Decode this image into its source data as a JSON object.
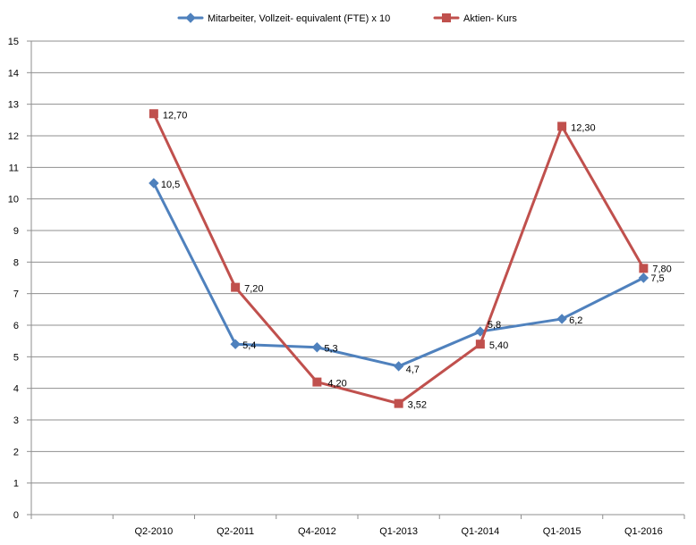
{
  "chart_data": {
    "type": "line",
    "categories": [
      "",
      "Q2-2010",
      "Q2-2011",
      "Q4-2012",
      "Q1-2013",
      "Q1-2014",
      "Q1-2015",
      "Q1-2016"
    ],
    "ylim": [
      0,
      15
    ],
    "y_ticks": [
      0,
      1,
      2,
      3,
      4,
      5,
      6,
      7,
      8,
      9,
      10,
      11,
      12,
      13,
      14,
      15
    ],
    "y_tick_labels": [
      "0",
      "1",
      "2",
      "3",
      "4",
      "5",
      "6",
      "7",
      "8",
      "9",
      "10",
      "11",
      "12",
      "13",
      "14",
      "15"
    ],
    "grid": true,
    "legend_position": "top",
    "series": [
      {
        "name": "Mitarbeiter,  Vollzeit- equivalent (FTE) x 10",
        "color": "#4F81BD",
        "marker": "diamond",
        "values": [
          null,
          10.5,
          5.4,
          5.3,
          4.7,
          5.8,
          6.2,
          7.5
        ],
        "labels": [
          "",
          "10,5",
          "5,4",
          "5,3",
          "4,7",
          "5,8",
          "6,2",
          "7,5"
        ]
      },
      {
        "name": "Aktien- Kurs",
        "color": "#C0504D",
        "marker": "square",
        "values": [
          null,
          12.7,
          7.2,
          4.2,
          3.52,
          5.4,
          12.3,
          7.8
        ],
        "labels": [
          "",
          "12,70",
          "7,20",
          "4,20",
          "3,52",
          "5,40",
          "12,30",
          "7,80"
        ]
      }
    ]
  }
}
